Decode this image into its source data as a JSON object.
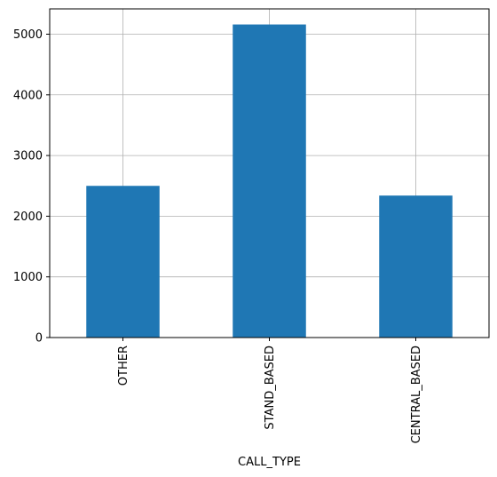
{
  "chart_data": {
    "type": "bar",
    "categories": [
      "OTHER",
      "STAND_BASED",
      "CENTRAL_BASED"
    ],
    "values": [
      2500,
      5160,
      2340
    ],
    "xlabel": "CALL_TYPE",
    "ylabel": "",
    "ylim": [
      0,
      5417
    ],
    "yticks": [
      0,
      1000,
      2000,
      3000,
      4000,
      5000
    ],
    "grid": true,
    "bar_color": "#1f77b4",
    "legend": "none"
  }
}
